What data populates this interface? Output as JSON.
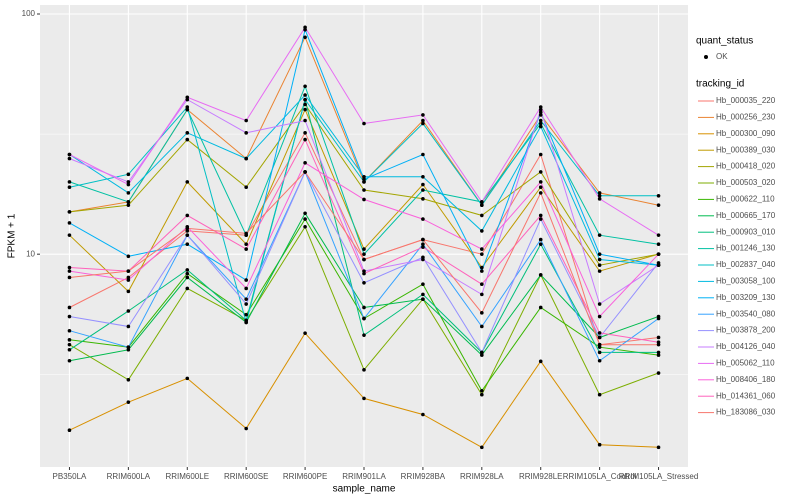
{
  "chart_data": {
    "type": "line",
    "log_y": true,
    "grid": true,
    "x_label": "sample_name",
    "y_label": "FPKM + 1",
    "categories": [
      "PB350LA",
      "RRIM600LA",
      "RRIM600LE",
      "RRIM600SE",
      "RRIM600PE",
      "RRIM901LA",
      "RRIM928BA",
      "RRIM928LA",
      "RRIM928LE",
      "RRIM105LA_Control",
      "RRIM105LA_Stressed"
    ],
    "ylim": [
      1.3,
      109
    ],
    "yticks": [
      10,
      100
    ],
    "point_legend_title": "quant_status",
    "point_legend_label": "OK",
    "legend_title": "tracking_id",
    "series": [
      {
        "name": "Hb_000035_220",
        "color": "#F8766D",
        "values": [
          6,
          8,
          12.5,
          12,
          32,
          9.5,
          11.5,
          10,
          26,
          4.2,
          4.5
        ]
      },
      {
        "name": "Hb_000256_230",
        "color": "#EA8331",
        "values": [
          15,
          16.5,
          40,
          25,
          80,
          20,
          36,
          16,
          38,
          18,
          16
        ]
      },
      {
        "name": "Hb_000300_090",
        "color": "#D89000",
        "values": [
          1.85,
          2.42,
          3.04,
          1.88,
          4.69,
          2.51,
          2.15,
          1.57,
          3.58,
          1.61,
          1.57
        ]
      },
      {
        "name": "Hb_000389_030",
        "color": "#C09B00",
        "values": [
          12,
          7,
          20,
          11,
          40,
          10.5,
          19.5,
          8.8,
          19,
          8.5,
          10
        ]
      },
      {
        "name": "Hb_000418_020",
        "color": "#A3A500",
        "values": [
          15,
          16,
          30,
          19,
          42,
          18.5,
          17,
          14.5,
          22,
          9,
          10
        ]
      },
      {
        "name": "Hb_000503_020",
        "color": "#7CAE00",
        "values": [
          4.2,
          3,
          7.2,
          5.3,
          13,
          3.3,
          6.5,
          2.6,
          8.2,
          2.6,
          3.2
        ]
      },
      {
        "name": "Hb_000622_110",
        "color": "#39B600",
        "values": [
          4.4,
          4.1,
          8.3,
          5.6,
          14,
          5.4,
          7.5,
          2.7,
          6,
          4.1,
          3.8
        ]
      },
      {
        "name": "Hb_000665_170",
        "color": "#00BB4E",
        "values": [
          3.6,
          4,
          8,
          5.2,
          14.8,
          6,
          6.5,
          3.8,
          8.2,
          4.5,
          5.5
        ]
      },
      {
        "name": "Hb_000903_010",
        "color": "#00BF7D",
        "values": [
          4,
          5.8,
          8.6,
          5.3,
          44,
          4.6,
          6.8,
          3.9,
          11,
          3.9,
          3.9
        ]
      },
      {
        "name": "Hb_001246_130",
        "color": "#00C1A3",
        "values": [
          20,
          16.5,
          40,
          12,
          50,
          10,
          18.5,
          16.5,
          35,
          12,
          11
        ]
      },
      {
        "name": "Hb_002837_040",
        "color": "#00BFC4",
        "values": [
          19,
          21.5,
          41,
          5.2,
          44,
          20,
          35,
          16,
          36,
          17.5,
          17.5
        ]
      },
      {
        "name": "Hb_003058_100",
        "color": "#00BAE0",
        "values": [
          26,
          18,
          32,
          25,
          46,
          21,
          21,
          12.5,
          34,
          9.5,
          9
        ]
      },
      {
        "name": "Hb_003209_130",
        "color": "#00B0F6",
        "values": [
          13.5,
          9.8,
          11,
          7.8,
          86,
          20.5,
          26,
          8.5,
          39,
          10,
          9
        ]
      },
      {
        "name": "Hb_003540_080",
        "color": "#35A2FF",
        "values": [
          4.8,
          4.1,
          12,
          6.5,
          22,
          5.4,
          11,
          5,
          11.5,
          3.6,
          5.4
        ]
      },
      {
        "name": "Hb_003878_200",
        "color": "#9590FF",
        "values": [
          5.5,
          5,
          12,
          6.2,
          22,
          7.6,
          9.7,
          3.9,
          14,
          4.5,
          9.2
        ]
      },
      {
        "name": "Hb_004126_040",
        "color": "#C77CFF",
        "values": [
          25,
          20,
          44,
          32,
          36,
          8.5,
          9.5,
          6.8,
          40,
          6.2,
          9
        ]
      },
      {
        "name": "Hb_005062_110",
        "color": "#E76BF3",
        "values": [
          26,
          19.5,
          45,
          36,
          88,
          35,
          38,
          16.5,
          41,
          17,
          12
        ]
      },
      {
        "name": "Hb_008406_180",
        "color": "#FA62DB",
        "values": [
          8.5,
          7.8,
          13,
          7.2,
          24,
          16.9,
          14,
          10.5,
          20,
          5.5,
          10
        ]
      },
      {
        "name": "Hb_014361_060",
        "color": "#FF62BC",
        "values": [
          8.8,
          8.5,
          14.5,
          10.5,
          30,
          8.3,
          10.7,
          7.5,
          14.5,
          4.7,
          4.3
        ]
      },
      {
        "name": "Hb_183086_030",
        "color": "#F8766D",
        "values": [
          8,
          8.5,
          12.8,
          12.2,
          22,
          9.5,
          11.5,
          5.7,
          18,
          4.2,
          4.2
        ]
      }
    ]
  }
}
